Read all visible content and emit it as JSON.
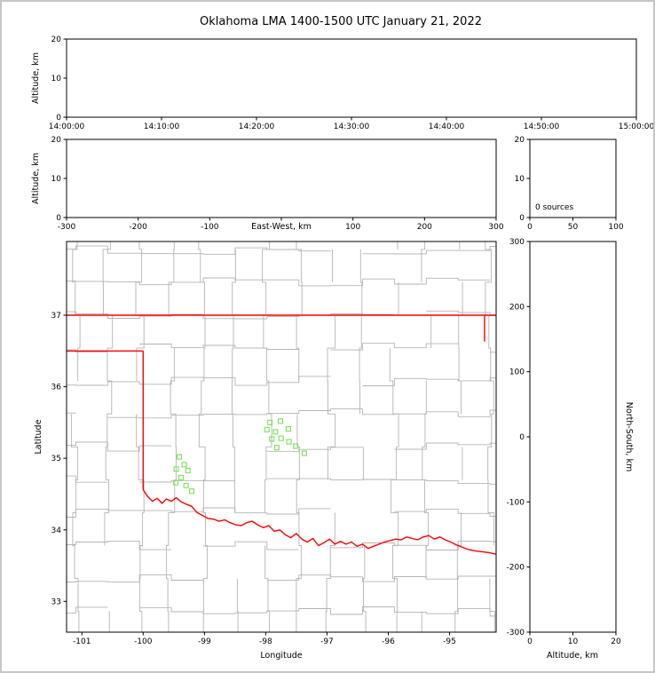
{
  "title": "Oklahoma LMA 1400-1500 UTC January 21, 2022",
  "colors": {
    "figure_border": "#c6c6c6",
    "background": "#ffffff"
  },
  "chart_data": {
    "type": "scatter",
    "layout": "lma-multi-panel",
    "title": "Oklahoma LMA 1400-1500 UTC January 21, 2022",
    "panels": {
      "time_height": {
        "ylabel": "Altitude, km",
        "ylim": [
          0,
          20
        ],
        "yticks": [
          0,
          10,
          20
        ],
        "yticklabels": [
          "0",
          "10",
          "20"
        ],
        "xticklabels": [
          "14:00:00",
          "14:10:00",
          "14:20:00",
          "14:30:00",
          "14:40:00",
          "14:50:00",
          "15:00:00"
        ],
        "points": []
      },
      "ew_height": {
        "ylabel": "Altitude, km",
        "xlabel": "East-West, km",
        "xlim": [
          -300,
          300
        ],
        "ylim": [
          0,
          20
        ],
        "xticks": [
          -300,
          -200,
          -100,
          0,
          100,
          200,
          300
        ],
        "xticklabels": [
          "-300",
          "-200",
          "-100",
          "",
          "100",
          "200",
          "300"
        ],
        "yticks": [
          0,
          10,
          20
        ],
        "yticklabels": [
          "0",
          "10",
          "20"
        ],
        "points": []
      },
      "source_histogram": {
        "annotation": "0 sources",
        "xlim": [
          0,
          100
        ],
        "xticks": [
          0,
          50,
          100
        ],
        "xticklabels": [
          "0",
          "50",
          "100"
        ],
        "ylim": [
          0,
          20
        ],
        "yticks": [
          0,
          10,
          20
        ],
        "yticklabels": [
          "0",
          "10",
          "20"
        ],
        "values": []
      },
      "plan_view": {
        "xlabel": "Longitude",
        "ylabel": "Latitude",
        "xlim": [
          -101.25,
          -94.24
        ],
        "ylim": [
          32.57,
          38.03
        ],
        "xticks": [
          -101,
          -100,
          -99,
          -98,
          -97,
          -96,
          -95
        ],
        "xticklabels": [
          "-101",
          "-100",
          "-99",
          "-98",
          "-97",
          "-96",
          "-95"
        ],
        "yticks": [
          33,
          34,
          35,
          36,
          37
        ],
        "yticklabels": [
          "33",
          "34",
          "35",
          "36",
          "37"
        ],
        "colors": {
          "county_lines": "#b4b4b4",
          "state_border": "#ff0000",
          "station_marker": "#7ce05a"
        },
        "stations": [
          [
            -99.41,
            35.02
          ],
          [
            -99.33,
            34.91
          ],
          [
            -99.46,
            34.85
          ],
          [
            -99.27,
            34.83
          ],
          [
            -99.38,
            34.73
          ],
          [
            -99.47,
            34.66
          ],
          [
            -99.3,
            34.62
          ],
          [
            -99.21,
            34.54
          ],
          [
            -97.93,
            35.5
          ],
          [
            -97.76,
            35.52
          ],
          [
            -97.98,
            35.4
          ],
          [
            -97.84,
            35.37
          ],
          [
            -97.63,
            35.41
          ],
          [
            -97.9,
            35.27
          ],
          [
            -97.75,
            35.28
          ],
          [
            -97.62,
            35.23
          ],
          [
            -97.82,
            35.15
          ],
          [
            -97.51,
            35.17
          ],
          [
            -97.37,
            35.07
          ]
        ],
        "state_border": [
          [
            [
              -101.25,
              37.0
            ],
            [
              -94.24,
              37.0
            ]
          ],
          [
            [
              -101.25,
              36.5
            ],
            [
              -100.0,
              36.5
            ]
          ],
          [
            [
              -100.0,
              36.5
            ],
            [
              -100.0,
              34.56
            ]
          ],
          [
            [
              -94.43,
              37.0
            ],
            [
              -94.43,
              36.63
            ]
          ],
          [
            [
              -100.0,
              34.56
            ],
            [
              -99.93,
              34.47
            ],
            [
              -99.85,
              34.4
            ],
            [
              -99.77,
              34.44
            ],
            [
              -99.69,
              34.37
            ],
            [
              -99.62,
              34.43
            ],
            [
              -99.54,
              34.4
            ],
            [
              -99.46,
              34.45
            ],
            [
              -99.38,
              34.39
            ],
            [
              -99.3,
              34.36
            ],
            [
              -99.21,
              34.33
            ],
            [
              -99.12,
              34.24
            ],
            [
              -99.03,
              34.2
            ],
            [
              -98.94,
              34.16
            ],
            [
              -98.85,
              34.15
            ],
            [
              -98.76,
              34.12
            ],
            [
              -98.67,
              34.14
            ],
            [
              -98.58,
              34.1
            ],
            [
              -98.49,
              34.07
            ],
            [
              -98.4,
              34.06
            ],
            [
              -98.31,
              34.1
            ],
            [
              -98.22,
              34.12
            ],
            [
              -98.13,
              34.07
            ],
            [
              -98.04,
              34.03
            ],
            [
              -97.95,
              34.06
            ],
            [
              -97.86,
              33.98
            ],
            [
              -97.77,
              34.0
            ],
            [
              -97.68,
              33.93
            ],
            [
              -97.59,
              33.89
            ],
            [
              -97.5,
              33.95
            ],
            [
              -97.41,
              33.87
            ],
            [
              -97.32,
              33.83
            ],
            [
              -97.23,
              33.88
            ],
            [
              -97.14,
              33.78
            ],
            [
              -97.05,
              33.82
            ],
            [
              -96.96,
              33.87
            ],
            [
              -96.87,
              33.8
            ],
            [
              -96.78,
              33.84
            ],
            [
              -96.69,
              33.8
            ],
            [
              -96.6,
              33.83
            ],
            [
              -96.51,
              33.77
            ],
            [
              -96.42,
              33.8
            ],
            [
              -96.33,
              33.74
            ],
            [
              -96.24,
              33.77
            ],
            [
              -96.15,
              33.8
            ],
            [
              -96.06,
              33.83
            ],
            [
              -95.97,
              33.85
            ],
            [
              -95.88,
              33.87
            ],
            [
              -95.79,
              33.86
            ],
            [
              -95.7,
              33.9
            ],
            [
              -95.61,
              33.88
            ],
            [
              -95.52,
              33.86
            ],
            [
              -95.43,
              33.9
            ],
            [
              -95.34,
              33.92
            ],
            [
              -95.25,
              33.87
            ],
            [
              -95.16,
              33.9
            ],
            [
              -95.07,
              33.86
            ],
            [
              -94.98,
              33.83
            ],
            [
              -94.89,
              33.79
            ],
            [
              -94.8,
              33.76
            ],
            [
              -94.71,
              33.73
            ],
            [
              -94.62,
              33.71
            ],
            [
              -94.53,
              33.7
            ],
            [
              -94.44,
              33.69
            ],
            [
              -94.35,
              33.68
            ],
            [
              -94.24,
              33.66
            ]
          ]
        ]
      },
      "ns_height": {
        "xlabel": "Altitude, km",
        "ylabel": "North-South, km",
        "xlim": [
          0,
          20
        ],
        "xticks": [
          0,
          10,
          20
        ],
        "xticklabels": [
          "0",
          "10",
          "20"
        ],
        "ylim": [
          -300,
          300
        ],
        "yticks": [
          -300,
          -200,
          -100,
          0,
          100,
          200,
          300
        ],
        "yticklabels": [
          "-300",
          "-200",
          "-100",
          "0",
          "100",
          "200",
          "300"
        ],
        "points": []
      }
    }
  }
}
